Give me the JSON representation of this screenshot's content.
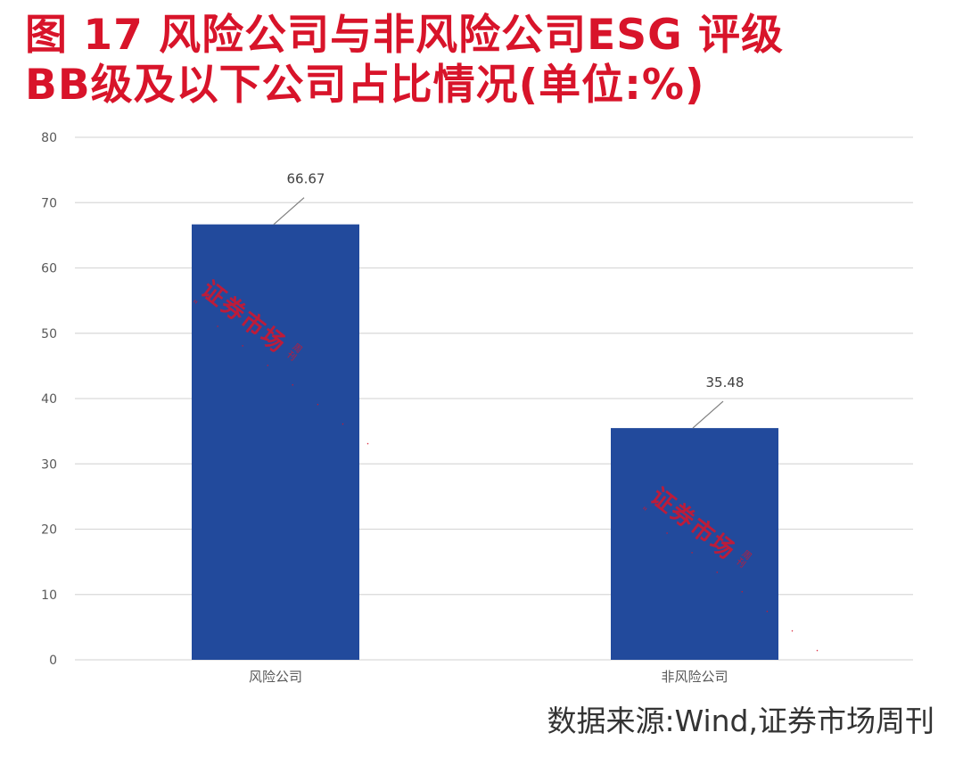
{
  "title": {
    "line1": "图 17  风险公司与非风险公司ESG 评级",
    "line2": "BB级及以下公司占比情况(单位:%)"
  },
  "source": "数据来源:Wind,证券市场周刊",
  "watermark": {
    "text": "证券市场",
    "small_text": "周刊",
    "dots": "\" . . . . . . ."
  },
  "colors": {
    "title": "#d8142a",
    "bar": "#224a9c",
    "grid": "#d9d9d9",
    "axis_text": "#595959"
  },
  "chart_data": {
    "type": "bar",
    "categories": [
      "风险公司",
      "非风险公司"
    ],
    "values": [
      66.67,
      35.48
    ],
    "data_labels": [
      "66.67",
      "35.48"
    ],
    "ylim": [
      0,
      80
    ],
    "yticks": [
      0,
      10,
      20,
      30,
      40,
      50,
      60,
      70,
      80
    ],
    "grid": true,
    "legend": "none"
  }
}
